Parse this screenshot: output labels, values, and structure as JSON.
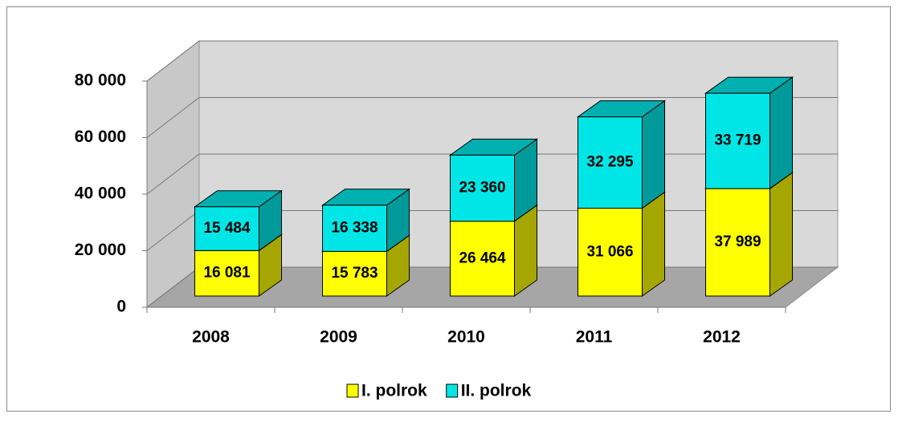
{
  "chart_data": {
    "type": "bar3d_stacked",
    "categories": [
      "2008",
      "2009",
      "2010",
      "2011",
      "2012"
    ],
    "series": [
      {
        "name": "I. polrok",
        "color": "#ffff00",
        "side": "#a6a600",
        "values": [
          16081,
          15783,
          26464,
          31066,
          37989
        ],
        "value_labels": [
          "16 081",
          "15 783",
          "26 464",
          "31 066",
          "37 989"
        ]
      },
      {
        "name": "II. polrok",
        "color": "#00e6e6",
        "side": "#009a9a",
        "values": [
          15484,
          16338,
          23360,
          32295,
          33719
        ],
        "value_labels": [
          "15 484",
          "16 338",
          "23 360",
          "32 295",
          "33 719"
        ]
      }
    ],
    "ylim": [
      0,
      80000
    ],
    "yticks": [
      0,
      {
        "value": 20000,
        "label": "20 000"
      },
      {
        "value": 40000,
        "label": "40 000"
      },
      {
        "value": 60000,
        "label": "60 000"
      },
      {
        "value": 80000,
        "label": "80 000"
      }
    ],
    "grid": true
  }
}
